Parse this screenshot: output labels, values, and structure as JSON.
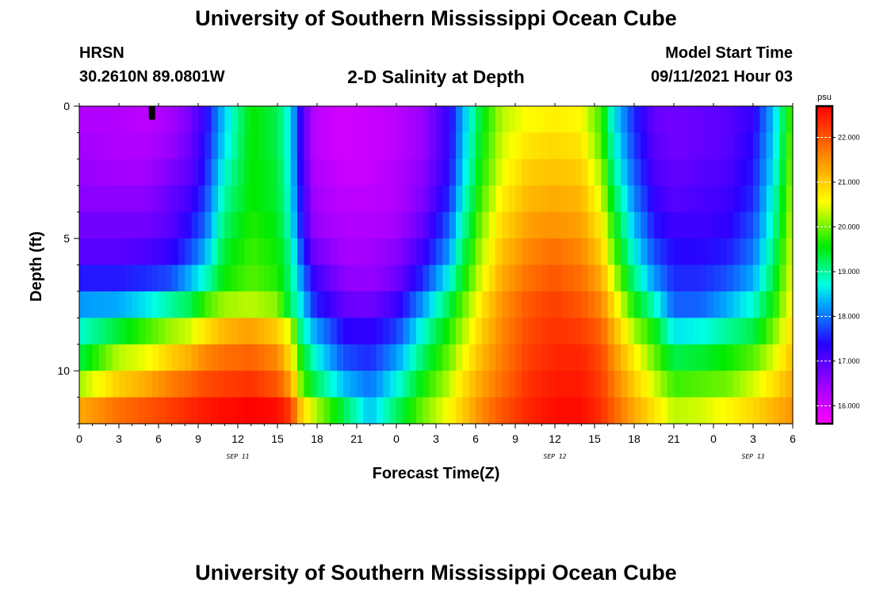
{
  "page": {
    "title_top": "University of Southern Mississippi Ocean Cube",
    "title_bottom": "University of Southern Mississippi Ocean Cube",
    "station_code": "HRSN",
    "station_coords": "30.2610N  89.0801W",
    "product_title": "2-D Salinity at Depth",
    "model_label": "Model Start Time",
    "model_start": "09/11/2021 Hour 03"
  },
  "chart_data": {
    "type": "heatmap",
    "title": "2-D Salinity at Depth",
    "xlabel": "Forecast Time(Z)",
    "ylabel": "Depth (ft)",
    "x_hours_range": [
      0,
      54
    ],
    "x_ticks": [
      {
        "hour": 0,
        "label": "0"
      },
      {
        "hour": 3,
        "label": "3"
      },
      {
        "hour": 6,
        "label": "6"
      },
      {
        "hour": 9,
        "label": "9"
      },
      {
        "hour": 12,
        "label": "12"
      },
      {
        "hour": 15,
        "label": "15"
      },
      {
        "hour": 18,
        "label": "18"
      },
      {
        "hour": 21,
        "label": "21"
      },
      {
        "hour": 24,
        "label": "0"
      },
      {
        "hour": 27,
        "label": "3"
      },
      {
        "hour": 30,
        "label": "6"
      },
      {
        "hour": 33,
        "label": "9"
      },
      {
        "hour": 36,
        "label": "12"
      },
      {
        "hour": 39,
        "label": "15"
      },
      {
        "hour": 42,
        "label": "18"
      },
      {
        "hour": 45,
        "label": "21"
      },
      {
        "hour": 48,
        "label": "0"
      },
      {
        "hour": 51,
        "label": "3"
      },
      {
        "hour": 54,
        "label": "6"
      }
    ],
    "date_labels": [
      {
        "hour": 12,
        "label": "SEP 11"
      },
      {
        "hour": 36,
        "label": "SEP 12"
      },
      {
        "hour": 51,
        "label": "SEP 13"
      }
    ],
    "depth_range_ft": [
      0,
      12
    ],
    "y_ticks": [
      {
        "depth": 0,
        "label": "0"
      },
      {
        "depth": 5,
        "label": "5"
      },
      {
        "depth": 10,
        "label": "10"
      }
    ],
    "y_minor_step_ft": 1,
    "depth_layers_ft": [
      0.5,
      1.5,
      2.5,
      3.5,
      4.5,
      5.5,
      6.5,
      7.5,
      8.5,
      9.5,
      10.5,
      11.5
    ],
    "colorbar": {
      "unit": "psu",
      "min": 15.6,
      "max": 22.7,
      "ticks": [
        {
          "value": 16.0,
          "label": "16.000"
        },
        {
          "value": 17.0,
          "label": "17.000"
        },
        {
          "value": 18.0,
          "label": "18.000"
        },
        {
          "value": 19.0,
          "label": "19.000"
        },
        {
          "value": 20.0,
          "label": "20.000"
        },
        {
          "value": 21.0,
          "label": "21.000"
        },
        {
          "value": 22.0,
          "label": "22.000"
        }
      ]
    },
    "marker_hour": 5.5,
    "salinity_profiles_psu": [
      {
        "hour": 0,
        "values": [
          16.3,
          16.4,
          16.5,
          16.6,
          16.8,
          17.0,
          17.5,
          18.2,
          18.8,
          19.3,
          20.2,
          21.3
        ]
      },
      {
        "hour": 3,
        "values": [
          16.3,
          16.3,
          16.4,
          16.6,
          16.8,
          17.0,
          17.5,
          18.3,
          19.4,
          20.3,
          21.0,
          21.8
        ]
      },
      {
        "hour": 5,
        "values": [
          16.2,
          16.3,
          16.4,
          16.6,
          16.8,
          17.1,
          17.6,
          18.6,
          19.8,
          20.5,
          21.3,
          22.0
        ]
      },
      {
        "hour": 7,
        "values": [
          16.4,
          16.5,
          16.7,
          16.9,
          17.0,
          17.3,
          17.8,
          19.0,
          20.2,
          21.0,
          21.7,
          22.2
        ]
      },
      {
        "hour": 8.5,
        "values": [
          16.8,
          16.9,
          17.0,
          17.2,
          17.5,
          17.8,
          18.4,
          19.3,
          20.4,
          21.3,
          21.9,
          22.4
        ]
      },
      {
        "hour": 9.5,
        "values": [
          17.3,
          17.4,
          17.5,
          17.7,
          17.9,
          18.3,
          18.8,
          19.8,
          20.8,
          21.6,
          22.1,
          22.5
        ]
      },
      {
        "hour": 11,
        "values": [
          18.5,
          18.6,
          18.8,
          19.0,
          19.2,
          19.4,
          19.6,
          20.2,
          21.2,
          21.8,
          22.2,
          22.6
        ]
      },
      {
        "hour": 13,
        "values": [
          19.6,
          19.6,
          19.6,
          19.6,
          19.7,
          19.8,
          19.9,
          20.3,
          21.4,
          21.9,
          22.3,
          22.7
        ]
      },
      {
        "hour": 15,
        "values": [
          19.3,
          19.3,
          19.4,
          19.4,
          19.5,
          19.6,
          19.7,
          20.1,
          21.0,
          21.6,
          22.0,
          22.6
        ]
      },
      {
        "hour": 16,
        "values": [
          18.6,
          18.6,
          18.6,
          18.7,
          18.8,
          19.0,
          19.1,
          19.2,
          20.4,
          20.8,
          21.4,
          22.2
        ]
      },
      {
        "hour": 16.8,
        "values": [
          17.2,
          17.2,
          17.3,
          17.4,
          17.5,
          17.8,
          18.2,
          18.6,
          19.0,
          19.6,
          20.0,
          21.0
        ]
      },
      {
        "hour": 17.8,
        "values": [
          16.2,
          16.2,
          16.3,
          16.4,
          16.5,
          16.8,
          17.2,
          17.6,
          18.3,
          18.8,
          19.3,
          20.3
        ]
      },
      {
        "hour": 20,
        "values": [
          16.0,
          16.0,
          16.1,
          16.2,
          16.3,
          16.4,
          16.6,
          16.9,
          17.4,
          17.8,
          18.4,
          19.3
        ]
      },
      {
        "hour": 22,
        "values": [
          16.1,
          16.1,
          16.1,
          16.2,
          16.3,
          16.4,
          16.5,
          16.8,
          17.3,
          17.6,
          18.0,
          18.4
        ]
      },
      {
        "hour": 24,
        "values": [
          16.2,
          16.2,
          16.3,
          16.3,
          16.4,
          16.6,
          16.8,
          17.2,
          17.7,
          18.2,
          18.7,
          19.2
        ]
      },
      {
        "hour": 26,
        "values": [
          16.5,
          16.5,
          16.6,
          16.7,
          16.9,
          17.2,
          17.6,
          18.2,
          18.8,
          19.2,
          19.6,
          20.0
        ]
      },
      {
        "hour": 28,
        "values": [
          17.3,
          17.3,
          17.4,
          17.6,
          17.9,
          18.2,
          18.7,
          19.3,
          19.7,
          20.0,
          20.3,
          20.6
        ]
      },
      {
        "hour": 29,
        "values": [
          18.3,
          18.4,
          18.5,
          18.7,
          18.9,
          19.2,
          19.5,
          19.9,
          20.2,
          20.5,
          20.8,
          21.0
        ]
      },
      {
        "hour": 30.5,
        "values": [
          19.5,
          19.6,
          19.7,
          19.9,
          20.1,
          20.3,
          20.5,
          20.8,
          21.0,
          21.2,
          21.4,
          21.6
        ]
      },
      {
        "hour": 32,
        "values": [
          20.3,
          20.4,
          20.5,
          20.7,
          20.9,
          21.1,
          21.3,
          21.5,
          21.6,
          21.7,
          21.8,
          22.0
        ]
      },
      {
        "hour": 34,
        "values": [
          20.6,
          20.8,
          21.0,
          21.2,
          21.4,
          21.6,
          21.8,
          22.0,
          22.1,
          22.2,
          22.3,
          22.4
        ]
      },
      {
        "hour": 36,
        "values": [
          20.7,
          20.9,
          21.1,
          21.3,
          21.5,
          21.8,
          22.0,
          22.2,
          22.3,
          22.4,
          22.5,
          22.6
        ]
      },
      {
        "hour": 38,
        "values": [
          20.6,
          20.8,
          21.0,
          21.2,
          21.4,
          21.6,
          21.8,
          22.0,
          22.2,
          22.4,
          22.5,
          22.6
        ]
      },
      {
        "hour": 39.5,
        "values": [
          19.8,
          19.9,
          20.2,
          20.4,
          20.7,
          21.0,
          21.3,
          21.6,
          21.9,
          22.1,
          22.2,
          22.3
        ]
      },
      {
        "hour": 40.5,
        "values": [
          18.6,
          18.8,
          19.0,
          19.3,
          19.6,
          19.9,
          20.3,
          20.8,
          21.2,
          21.5,
          21.7,
          21.9
        ]
      },
      {
        "hour": 42,
        "values": [
          17.6,
          17.7,
          17.9,
          18.1,
          18.4,
          18.7,
          19.1,
          19.6,
          20.2,
          20.7,
          21.0,
          21.3
        ]
      },
      {
        "hour": 43.5,
        "values": [
          16.9,
          17.0,
          17.1,
          17.3,
          17.5,
          17.8,
          18.2,
          18.9,
          19.6,
          20.0,
          20.4,
          20.8
        ]
      },
      {
        "hour": 45,
        "values": [
          16.8,
          16.8,
          16.9,
          17.0,
          17.2,
          17.4,
          17.6,
          17.9,
          18.6,
          19.3,
          19.8,
          20.3
        ]
      },
      {
        "hour": 47,
        "values": [
          16.9,
          16.9,
          17.0,
          17.1,
          17.2,
          17.4,
          17.6,
          17.9,
          18.7,
          19.4,
          19.9,
          20.4
        ]
      },
      {
        "hour": 49,
        "values": [
          17.0,
          17.0,
          17.1,
          17.2,
          17.3,
          17.5,
          17.8,
          18.3,
          19.0,
          19.6,
          20.0,
          20.6
        ]
      },
      {
        "hour": 51,
        "values": [
          17.3,
          17.4,
          17.5,
          17.6,
          17.8,
          18.0,
          18.3,
          18.8,
          19.3,
          19.9,
          20.4,
          20.9
        ]
      },
      {
        "hour": 52.5,
        "values": [
          18.4,
          18.5,
          18.6,
          18.8,
          18.9,
          19.1,
          19.3,
          19.6,
          20.0,
          20.4,
          20.8,
          21.2
        ]
      },
      {
        "hour": 54,
        "values": [
          20.0,
          20.1,
          20.2,
          20.3,
          20.4,
          20.5,
          20.6,
          20.7,
          20.9,
          21.1,
          21.3,
          21.5
        ]
      }
    ]
  }
}
